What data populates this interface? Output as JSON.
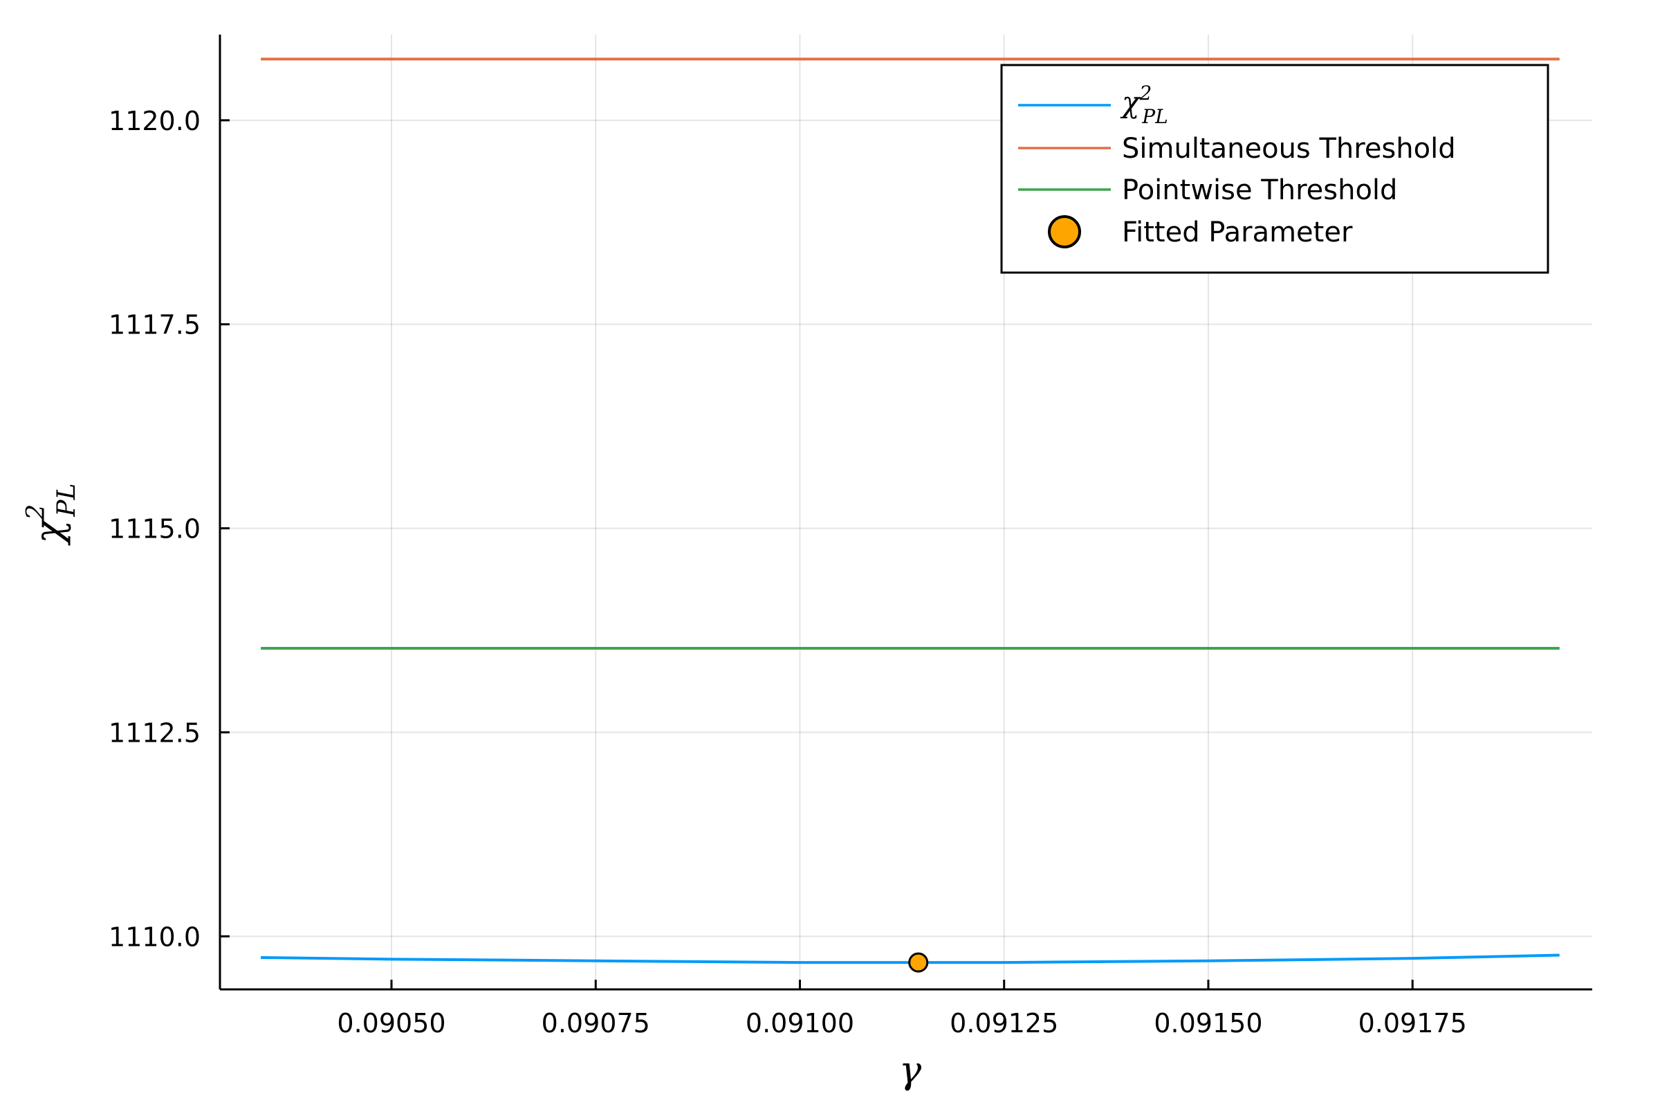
{
  "chart_data": {
    "type": "line",
    "xlabel": "γ",
    "ylabel": {
      "base": "χ",
      "sup": "2",
      "sub": "PL"
    },
    "xlim": [
      0.09029,
      0.09197
    ],
    "ylim": [
      1109.35,
      1121.05
    ],
    "xticks": [
      {
        "value": 0.0905,
        "label": "0.09050"
      },
      {
        "value": 0.09075,
        "label": "0.09075"
      },
      {
        "value": 0.091,
        "label": "0.09100"
      },
      {
        "value": 0.09125,
        "label": "0.09125"
      },
      {
        "value": 0.0915,
        "label": "0.09150"
      },
      {
        "value": 0.09175,
        "label": "0.09175"
      }
    ],
    "yticks": [
      {
        "value": 1110.0,
        "label": "1110.0"
      },
      {
        "value": 1112.5,
        "label": "1112.5"
      },
      {
        "value": 1115.0,
        "label": "1115.0"
      },
      {
        "value": 1117.5,
        "label": "1117.5"
      },
      {
        "value": 1120.0,
        "label": "1120.0"
      }
    ],
    "grid": true,
    "legend_position": "top-right",
    "series": [
      {
        "name": {
          "base": "χ",
          "sup": "2",
          "sub": "PL"
        },
        "kind": "line",
        "color": "#009AFA",
        "x": [
          0.09034,
          0.0905,
          0.09075,
          0.091,
          0.09115,
          0.09125,
          0.0915,
          0.09175,
          0.09193
        ],
        "y": [
          1109.74,
          1109.72,
          1109.7,
          1109.68,
          1109.68,
          1109.68,
          1109.7,
          1109.73,
          1109.77
        ]
      },
      {
        "name": "Simultaneous Threshold",
        "kind": "line",
        "color": "#E36F47",
        "x": [
          0.09034,
          0.09193
        ],
        "y": [
          1120.75,
          1120.75
        ]
      },
      {
        "name": "Pointwise Threshold",
        "kind": "line",
        "color": "#3EA44E",
        "x": [
          0.09034,
          0.09193
        ],
        "y": [
          1113.53,
          1113.53
        ]
      },
      {
        "name": "Fitted Parameter",
        "kind": "scatter",
        "color": "#FFA500",
        "x": [
          0.091145
        ],
        "y": [
          1109.68
        ]
      }
    ]
  }
}
